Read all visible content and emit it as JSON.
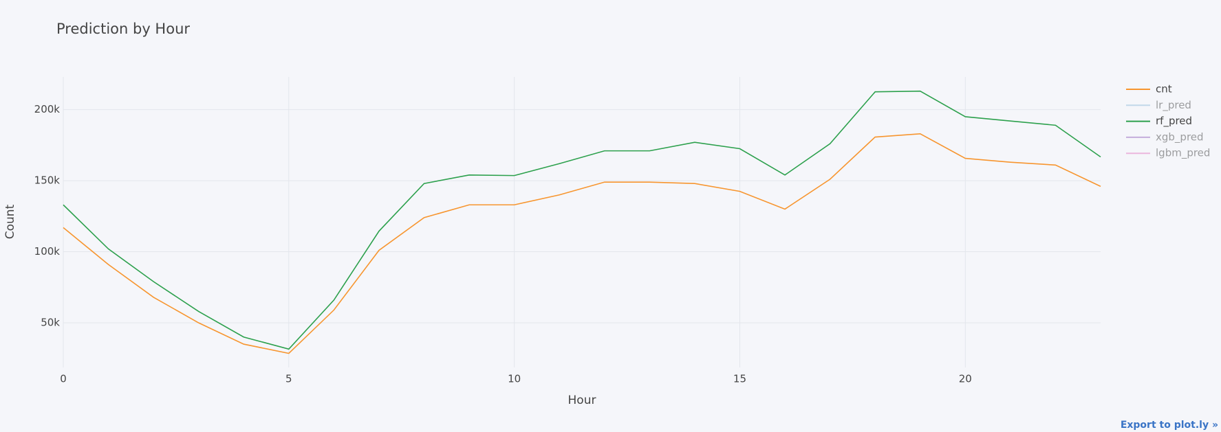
{
  "chart_data": {
    "type": "line",
    "title": "Prediction by Hour",
    "xlabel": "Hour",
    "ylabel": "Count",
    "x": [
      0,
      1,
      2,
      3,
      4,
      5,
      6,
      7,
      8,
      9,
      10,
      11,
      12,
      13,
      14,
      15,
      16,
      17,
      18,
      19,
      20,
      21,
      22,
      23
    ],
    "series": [
      {
        "name": "cnt",
        "color": "#f7952e",
        "visible": true,
        "values": [
          117000,
          91000,
          68000,
          50000,
          35000,
          28500,
          59000,
          101000,
          124000,
          133000,
          133000,
          140000,
          149000,
          149000,
          148000,
          142500,
          130000,
          151000,
          180700,
          183000,
          165700,
          163000,
          161000,
          146000
        ]
      },
      {
        "name": "lr_pred",
        "color": "#8fbbd9",
        "visible": false
      },
      {
        "name": "rf_pred",
        "color": "#2ca04c",
        "visible": true,
        "values": [
          133000,
          102000,
          79000,
          58000,
          40000,
          31500,
          66000,
          114500,
          148000,
          154000,
          153600,
          162000,
          171000,
          171000,
          177000,
          172500,
          154000,
          176000,
          212500,
          213000,
          195000,
          192000,
          189000,
          166700
        ]
      },
      {
        "name": "xgb_pred",
        "color": "#9467bd",
        "visible": false
      },
      {
        "name": "lgbm_pred",
        "color": "#e377c2",
        "visible": false
      }
    ],
    "xlim": [
      0,
      23
    ],
    "xticks": [
      0,
      5,
      10,
      15,
      20
    ],
    "ylim": [
      18600,
      223000
    ],
    "yticks": [
      {
        "value": 50000,
        "label": "50k"
      },
      {
        "value": 100000,
        "label": "100k"
      },
      {
        "value": 150000,
        "label": "150k"
      },
      {
        "value": 200000,
        "label": "200k"
      }
    ],
    "grid": true
  },
  "export_link": "Export to plot.ly »"
}
